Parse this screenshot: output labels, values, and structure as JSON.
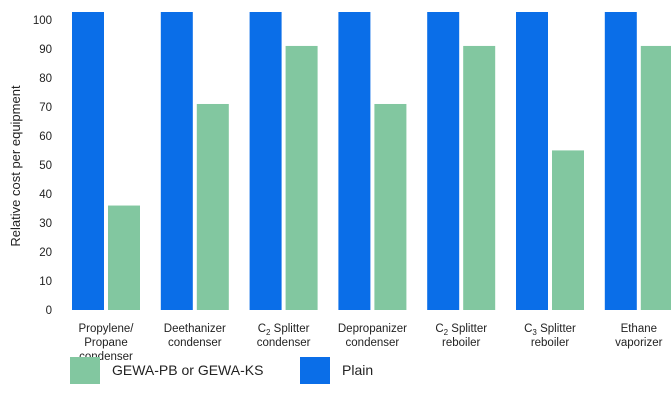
{
  "chart_data": {
    "type": "bar",
    "ylabel": "Relative cost per equipment",
    "xlabel": "",
    "ylim": [
      0,
      100
    ],
    "yticks": [
      0,
      10,
      20,
      30,
      40,
      50,
      60,
      70,
      80,
      90,
      100
    ],
    "grid": false,
    "legend_placement": "bottom-left",
    "categories": [
      [
        "Propylene/",
        "Propane",
        "condenser"
      ],
      [
        "Deethanizer",
        "condenser"
      ],
      [
        "C2 Splitter",
        "condenser"
      ],
      [
        "Depropanizer",
        "condenser"
      ],
      [
        "C2 Splitter",
        "reboiler"
      ],
      [
        "C3 Splitter",
        "reboiler"
      ],
      [
        "Ethane",
        "vaporizer"
      ]
    ],
    "series": [
      {
        "name": "Plain",
        "color": "#0a6ee8",
        "values": [
          100,
          100,
          100,
          100,
          100,
          100,
          100
        ]
      },
      {
        "name": "GEWA-PB or GEWA-KS",
        "color": "#82c7a0",
        "values": [
          36,
          71,
          91,
          71,
          91,
          55,
          91
        ]
      }
    ],
    "legend": [
      {
        "label": "GEWA-PB or GEWA-KS",
        "color": "#82c7a0"
      },
      {
        "label": "Plain",
        "color": "#0a6ee8"
      }
    ]
  }
}
